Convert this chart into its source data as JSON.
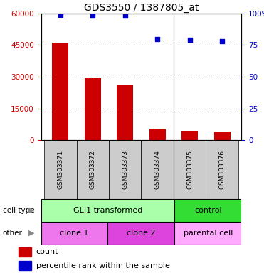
{
  "title": "GDS3550 / 1387805_at",
  "samples": [
    "GSM303371",
    "GSM303372",
    "GSM303373",
    "GSM303374",
    "GSM303375",
    "GSM303376"
  ],
  "counts": [
    46000,
    29500,
    26000,
    5500,
    4500,
    4000
  ],
  "percentile_ranks": [
    99,
    98,
    98,
    80,
    79,
    78
  ],
  "left_ylim": [
    0,
    60000
  ],
  "left_yticks": [
    0,
    15000,
    30000,
    45000,
    60000
  ],
  "right_ylim": [
    0,
    100
  ],
  "right_yticks": [
    0,
    25,
    50,
    75,
    100
  ],
  "bar_color": "#cc0000",
  "dot_color": "#0000cc",
  "bar_width": 0.5,
  "cell_type_gli_color": "#aaffaa",
  "cell_type_ctrl_color": "#33dd33",
  "clone1_color": "#ee77ee",
  "clone2_color": "#dd44dd",
  "parental_color": "#ffaaff",
  "sample_box_color": "#cccccc",
  "bg_color": "#ffffff",
  "tick_color_left": "#cc0000",
  "tick_color_right": "#0000cc",
  "title_fontsize": 10,
  "tick_fontsize": 7.5,
  "annotation_fontsize": 8,
  "legend_fontsize": 8
}
